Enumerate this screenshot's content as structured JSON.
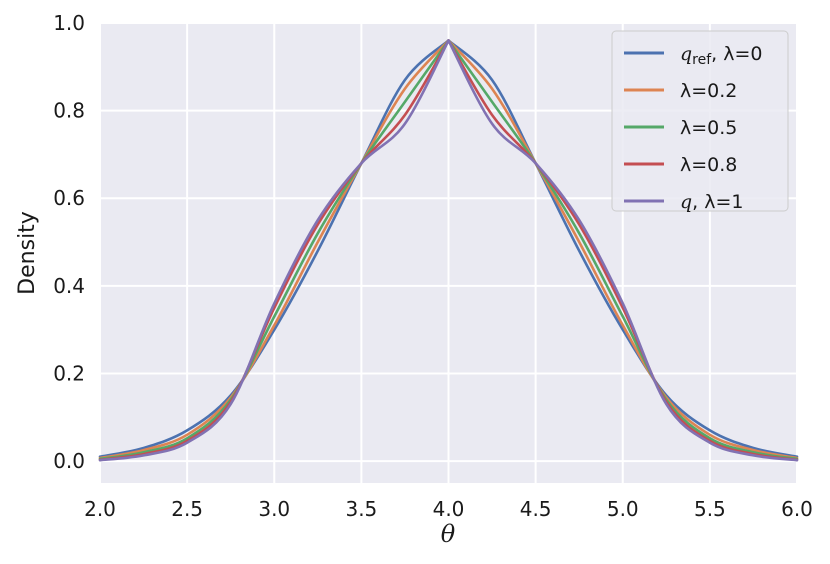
{
  "chart_data": {
    "type": "line",
    "xlabel": "θ",
    "ylabel": "Density",
    "xlim": [
      2.0,
      6.0
    ],
    "ylim": [
      -0.05,
      1.0
    ],
    "x_ticks": [
      "2.0",
      "2.5",
      "3.0",
      "3.5",
      "4.0",
      "4.5",
      "5.0",
      "5.5",
      "6.0"
    ],
    "y_ticks": [
      "0.0",
      "0.2",
      "0.4",
      "0.6",
      "0.8",
      "1.0"
    ],
    "grid": true,
    "legend_position": "top-right",
    "x": [
      2.0,
      2.25,
      2.5,
      2.75,
      3.0,
      3.25,
      3.5,
      3.75,
      4.0,
      4.25,
      4.5,
      4.75,
      5.0,
      5.25,
      5.5,
      5.75,
      6.0
    ],
    "series": [
      {
        "legend_symbol": "q",
        "legend_subscript": "ref",
        "legend_suffix": ", λ=0",
        "color": "#4c72b0",
        "values": [
          0.01,
          0.03,
          0.07,
          0.15,
          0.3,
          0.48,
          0.68,
          0.87,
          0.96,
          0.87,
          0.68,
          0.48,
          0.3,
          0.15,
          0.07,
          0.03,
          0.01
        ]
      },
      {
        "name": "λ=0.2",
        "color": "#dd8452",
        "values": [
          0.007,
          0.025,
          0.06,
          0.145,
          0.31,
          0.5,
          0.68,
          0.85,
          0.96,
          0.85,
          0.68,
          0.5,
          0.31,
          0.145,
          0.06,
          0.025,
          0.007
        ]
      },
      {
        "name": "λ=0.5",
        "color": "#55a868",
        "values": [
          0.005,
          0.02,
          0.052,
          0.14,
          0.33,
          0.52,
          0.68,
          0.82,
          0.96,
          0.82,
          0.68,
          0.52,
          0.33,
          0.14,
          0.052,
          0.02,
          0.005
        ]
      },
      {
        "name": "λ=0.8",
        "color": "#c44e52",
        "values": [
          0.003,
          0.016,
          0.046,
          0.135,
          0.35,
          0.54,
          0.68,
          0.79,
          0.96,
          0.79,
          0.68,
          0.54,
          0.35,
          0.135,
          0.046,
          0.016,
          0.003
        ]
      },
      {
        "legend_symbol": "q",
        "legend_suffix": ", λ=1",
        "color": "#8172b3",
        "values": [
          0.002,
          0.013,
          0.042,
          0.13,
          0.36,
          0.55,
          0.68,
          0.77,
          0.96,
          0.77,
          0.68,
          0.55,
          0.36,
          0.13,
          0.042,
          0.013,
          0.002
        ]
      }
    ]
  }
}
